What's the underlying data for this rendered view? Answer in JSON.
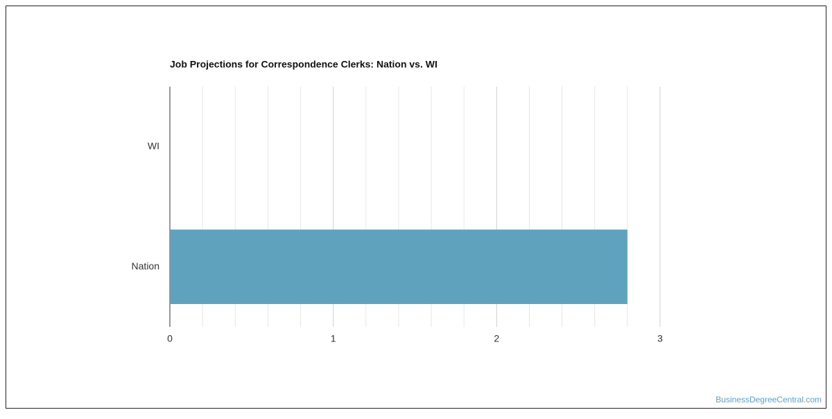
{
  "chart_data": {
    "type": "bar",
    "orientation": "horizontal",
    "title": "Job Projections for Correspondence Clerks: Nation vs. WI",
    "categories": [
      "WI",
      "Nation"
    ],
    "values": [
      0,
      2.8
    ],
    "color": "#5fa2be",
    "xlim": [
      0,
      3
    ],
    "xticks": [
      0,
      1,
      2,
      3
    ],
    "xminorticks": [
      0.2,
      0.4,
      0.6,
      0.8,
      1.2,
      1.4,
      1.6,
      1.8,
      2.2,
      2.4,
      2.6,
      2.8
    ],
    "grid": true,
    "watermark": "BusinessDegreeCentral.com"
  }
}
